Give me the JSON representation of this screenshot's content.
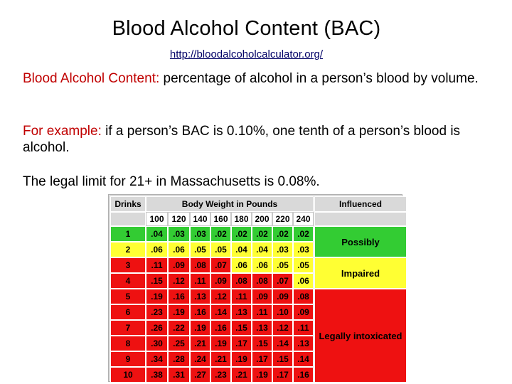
{
  "title": "Blood Alcohol Content (BAC)",
  "link": "http://bloodalcoholcalculator.org/",
  "paragraphs": {
    "p1_lead": "Blood Alcohol Content:",
    "p1_body": " percentage of alcohol in a person’s blood by volume.",
    "p2_lead": "For example:",
    "p2_body": " if a person’s BAC is 0.10%, one tenth of a person’s blood is alcohol.",
    "p3": "The legal limit for 21+ in Massachusetts is 0.08%."
  },
  "table": {
    "drinks_header": "Drinks",
    "weight_header": "Body Weight in Pounds",
    "influenced_header": "Influenced",
    "weights": [
      "100",
      "120",
      "140",
      "160",
      "180",
      "200",
      "220",
      "240"
    ],
    "rows": [
      {
        "drinks": "1",
        "values": [
          ".04",
          ".03",
          ".03",
          ".02",
          ".02",
          ".02",
          ".02",
          ".02"
        ]
      },
      {
        "drinks": "2",
        "values": [
          ".06",
          ".06",
          ".05",
          ".05",
          ".04",
          ".04",
          ".03",
          ".03"
        ]
      },
      {
        "drinks": "3",
        "values": [
          ".11",
          ".09",
          ".08",
          ".07",
          ".06",
          ".06",
          ".05",
          ".05"
        ]
      },
      {
        "drinks": "4",
        "values": [
          ".15",
          ".12",
          ".11",
          ".09",
          ".08",
          ".08",
          ".07",
          ".06"
        ]
      },
      {
        "drinks": "5",
        "values": [
          ".19",
          ".16",
          ".13",
          ".12",
          ".11",
          ".09",
          ".09",
          ".08"
        ]
      },
      {
        "drinks": "6",
        "values": [
          ".23",
          ".19",
          ".16",
          ".14",
          ".13",
          ".11",
          ".10",
          ".09"
        ]
      },
      {
        "drinks": "7",
        "values": [
          ".26",
          ".22",
          ".19",
          ".16",
          ".15",
          ".13",
          ".12",
          ".11"
        ]
      },
      {
        "drinks": "8",
        "values": [
          ".30",
          ".25",
          ".21",
          ".19",
          ".17",
          ".15",
          ".14",
          ".13"
        ]
      },
      {
        "drinks": "9",
        "values": [
          ".34",
          ".28",
          ".24",
          ".21",
          ".19",
          ".17",
          ".15",
          ".14"
        ]
      },
      {
        "drinks": "10",
        "values": [
          ".38",
          ".31",
          ".27",
          ".23",
          ".21",
          ".19",
          ".17",
          ".16"
        ]
      }
    ],
    "zones": {
      "possibly": "Possibly",
      "impaired": "Impaired",
      "intoxicated": "Legally intoxicated"
    },
    "colors": {
      "possibly": "#33cc33",
      "impaired": "#ffff33",
      "intoxicated": "#ee1111"
    }
  }
}
